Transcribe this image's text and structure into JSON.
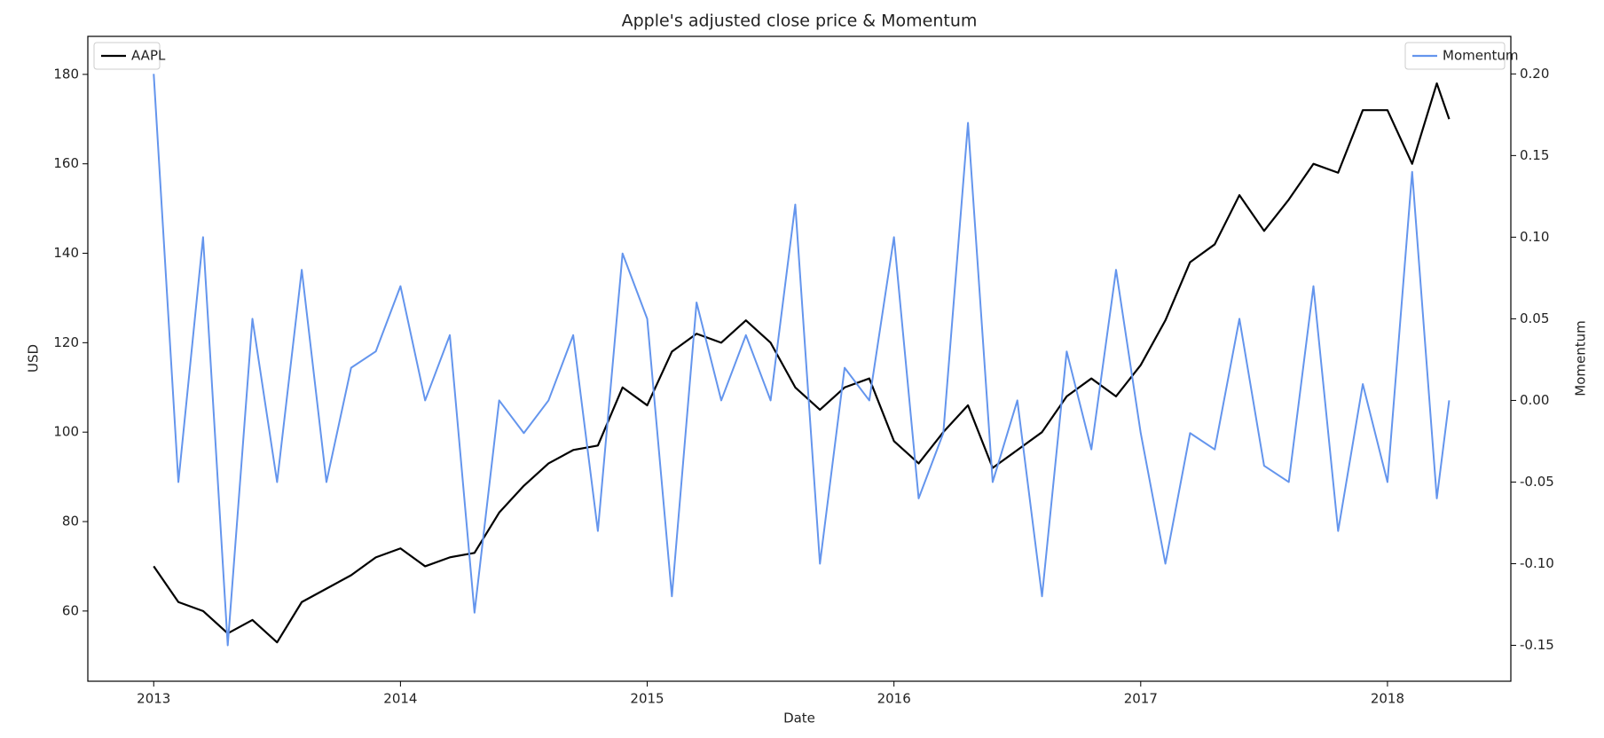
{
  "chart_data": {
    "type": "line",
    "title": "Apple's adjusted close price & Momentum",
    "x_label": "Date",
    "y_label": "USD",
    "y2_label": "Momentum",
    "x": [
      2013.0,
      2013.1,
      2013.2,
      2013.3,
      2013.4,
      2013.5,
      2013.6,
      2013.7,
      2013.8,
      2013.9,
      2014.0,
      2014.1,
      2014.2,
      2014.3,
      2014.4,
      2014.5,
      2014.6,
      2014.7,
      2014.8,
      2014.9,
      2015.0,
      2015.1,
      2015.2,
      2015.3,
      2015.4,
      2015.5,
      2015.6,
      2015.7,
      2015.8,
      2015.9,
      2016.0,
      2016.1,
      2016.2,
      2016.3,
      2016.4,
      2016.5,
      2016.6,
      2016.7,
      2016.8,
      2016.9,
      2017.0,
      2017.1,
      2017.2,
      2017.3,
      2017.4,
      2017.5,
      2017.6,
      2017.7,
      2017.8,
      2017.9,
      2018.0,
      2018.1,
      2018.2,
      2018.25
    ],
    "xlim": [
      2012.733,
      2018.5
    ],
    "xticks": [
      2013,
      2014,
      2015,
      2016,
      2017,
      2018
    ],
    "ylim": [
      44.3,
      188.5
    ],
    "yticks": [
      60,
      80,
      100,
      120,
      140,
      160,
      180
    ],
    "y2lim": [
      -0.172,
      0.223
    ],
    "y2ticks": [
      {
        "value": -0.15,
        "label": "-0.15"
      },
      {
        "value": -0.1,
        "label": "-0.10"
      },
      {
        "value": -0.05,
        "label": "-0.05"
      },
      {
        "value": 0,
        "label": "0.00"
      },
      {
        "value": 0.05,
        "label": "0.05"
      },
      {
        "value": 0.1,
        "label": "0.10"
      },
      {
        "value": 0.15,
        "label": "0.15"
      },
      {
        "value": 0.2,
        "label": "0.20"
      }
    ],
    "grid": false,
    "series": [
      {
        "name": "AAPL",
        "color": "#000000",
        "axis": "y",
        "legend_loc": "upper left",
        "values": [
          70,
          62,
          60,
          55,
          58,
          53,
          62,
          65,
          68,
          72,
          74,
          70,
          72,
          73,
          82,
          88,
          93,
          96,
          97,
          110,
          106,
          118,
          122,
          120,
          125,
          120,
          110,
          105,
          110,
          112,
          98,
          93,
          100,
          106,
          92,
          96,
          100,
          108,
          112,
          108,
          115,
          125,
          138,
          142,
          153,
          145,
          152,
          160,
          158,
          172,
          172,
          160,
          178,
          170
        ]
      },
      {
        "name": "Momentum",
        "color": "#6495ed",
        "axis": "y2",
        "legend_loc": "upper right",
        "values": [
          0.2,
          -0.05,
          0.1,
          -0.15,
          0.05,
          -0.05,
          0.08,
          -0.05,
          0.02,
          0.03,
          0.07,
          0.0,
          0.04,
          -0.13,
          0.0,
          -0.02,
          0.0,
          0.04,
          -0.08,
          0.09,
          0.05,
          -0.12,
          0.06,
          0.0,
          0.04,
          0.0,
          0.12,
          -0.1,
          0.02,
          0.0,
          0.1,
          -0.06,
          -0.02,
          0.17,
          -0.05,
          0.0,
          -0.12,
          0.03,
          -0.03,
          0.08,
          -0.02,
          -0.1,
          -0.02,
          -0.03,
          0.05,
          -0.04,
          -0.05,
          0.07,
          -0.08,
          0.01,
          -0.05,
          0.14,
          -0.06,
          0.0
        ]
      }
    ]
  }
}
